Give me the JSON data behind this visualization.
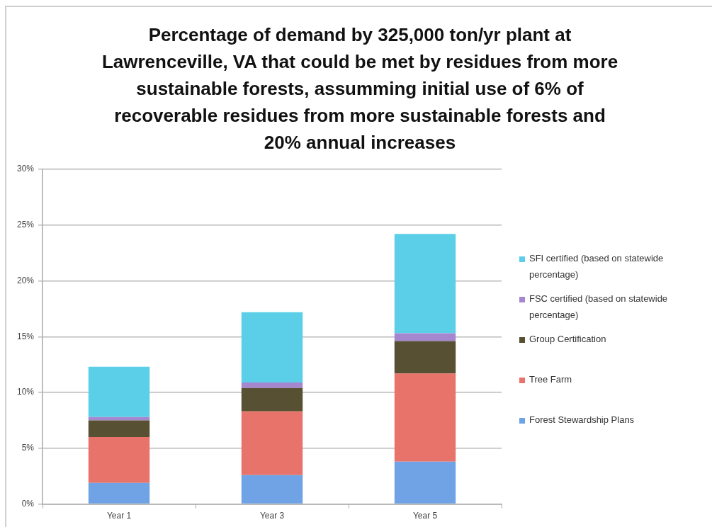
{
  "chart_data": {
    "type": "bar",
    "title": "Percentage of demand by 325,000 ton/yr plant at Lawrenceville, VA that could be met by residues from more sustainable forests, assumming initial use of 6% of recoverable residues from more sustainable forests and 20% annual increases",
    "categories": [
      "Year 1",
      "Year 3",
      "Year 5"
    ],
    "series": [
      {
        "name": "Forest Stewardship Plans",
        "color": "#6fa3e6",
        "values": [
          1.9,
          2.6,
          3.8
        ]
      },
      {
        "name": "Tree Farm",
        "color": "#e8736a",
        "values": [
          4.1,
          5.7,
          7.9
        ]
      },
      {
        "name": "Group Certification",
        "color": "#575032",
        "values": [
          1.5,
          2.1,
          2.9
        ]
      },
      {
        "name": "FSC certified (based on statewide percentage)",
        "color": "#a487cf",
        "values": [
          0.3,
          0.5,
          0.7
        ]
      },
      {
        "name": "SFI certified (based on statewide percentage)",
        "color": "#5ccfe8",
        "values": [
          4.5,
          6.3,
          8.9
        ]
      }
    ],
    "stacked": true,
    "ylim": [
      0,
      30
    ],
    "yticks": [
      {
        "value": 0,
        "label": "0%"
      },
      {
        "value": 5,
        "label": "5%"
      },
      {
        "value": 10,
        "label": "10%"
      },
      {
        "value": 15,
        "label": "15%"
      },
      {
        "value": 20,
        "label": "20%"
      },
      {
        "value": 25,
        "label": "25%"
      },
      {
        "value": 30,
        "label": "30%"
      }
    ],
    "grid": "y",
    "legend": "right"
  }
}
